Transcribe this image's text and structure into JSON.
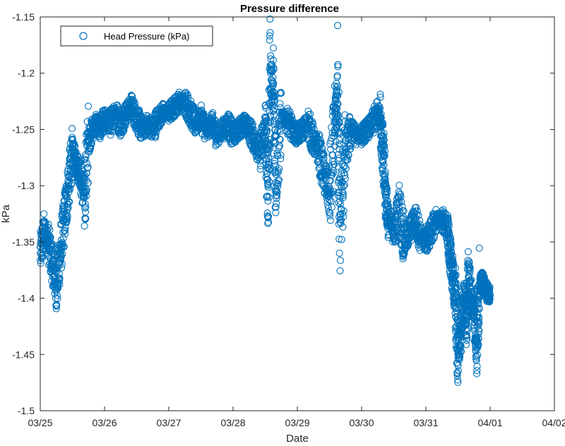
{
  "chart_data": {
    "type": "scatter",
    "title": "Pressure difference",
    "xlabel": "Date",
    "ylabel": "kPa",
    "x_ticks": [
      "03/25",
      "03/26",
      "03/27",
      "03/28",
      "03/29",
      "03/30",
      "03/31",
      "04/01",
      "04/02"
    ],
    "y_ticks": [
      "-1.15",
      "-1.2",
      "-1.25",
      "-1.3",
      "-1.35",
      "-1.4",
      "-1.45",
      "-1.5"
    ],
    "xlim": [
      "03/25",
      "04/02"
    ],
    "ylim": [
      -1.5,
      -1.15
    ],
    "grid": false,
    "legend_position": "top-left",
    "colors": {
      "series": "#0072BD",
      "axes": "#262626"
    },
    "series": [
      {
        "name": "Head Pressure (kPa)",
        "marker": "open-circle",
        "points": [
          [
            "03/25 00:00",
            -1.36
          ],
          [
            "03/25 01:30",
            -1.34
          ],
          [
            "03/25 03:00",
            -1.35
          ],
          [
            "03/25 04:30",
            -1.37
          ],
          [
            "03/25 06:00",
            -1.39
          ],
          [
            "03/25 07:30",
            -1.36
          ],
          [
            "03/25 09:00",
            -1.33
          ],
          [
            "03/25 10:30",
            -1.3
          ],
          [
            "03/25 12:00",
            -1.27
          ],
          [
            "03/25 13:30",
            -1.28
          ],
          [
            "03/25 15:00",
            -1.29
          ],
          [
            "03/25 16:30",
            -1.31
          ],
          [
            "03/25 18:00",
            -1.26
          ],
          [
            "03/25 19:30",
            -1.25
          ],
          [
            "03/25 21:00",
            -1.245
          ],
          [
            "03/25 22:30",
            -1.25
          ],
          [
            "03/26 00:00",
            -1.24
          ],
          [
            "03/26 02:00",
            -1.245
          ],
          [
            "03/26 04:00",
            -1.235
          ],
          [
            "03/26 06:00",
            -1.245
          ],
          [
            "03/26 08:00",
            -1.235
          ],
          [
            "03/26 10:00",
            -1.23
          ],
          [
            "03/26 12:00",
            -1.24
          ],
          [
            "03/26 14:00",
            -1.25
          ],
          [
            "03/26 16:00",
            -1.245
          ],
          [
            "03/26 18:00",
            -1.25
          ],
          [
            "03/26 20:00",
            -1.24
          ],
          [
            "03/26 22:00",
            -1.235
          ],
          [
            "03/27 00:00",
            -1.235
          ],
          [
            "03/27 02:00",
            -1.23
          ],
          [
            "03/27 04:00",
            -1.225
          ],
          [
            "03/27 06:00",
            -1.225
          ],
          [
            "03/27 08:00",
            -1.235
          ],
          [
            "03/27 10:00",
            -1.245
          ],
          [
            "03/27 12:00",
            -1.24
          ],
          [
            "03/27 14:00",
            -1.25
          ],
          [
            "03/27 16:00",
            -1.245
          ],
          [
            "03/27 18:00",
            -1.255
          ],
          [
            "03/27 20:00",
            -1.25
          ],
          [
            "03/27 22:00",
            -1.245
          ],
          [
            "03/28 00:00",
            -1.255
          ],
          [
            "03/28 02:00",
            -1.25
          ],
          [
            "03/28 04:00",
            -1.245
          ],
          [
            "03/28 06:00",
            -1.25
          ],
          [
            "03/28 08:00",
            -1.26
          ],
          [
            "03/28 10:00",
            -1.27
          ],
          [
            "03/28 12:00",
            -1.25
          ],
          [
            "03/28 13:00",
            -1.3
          ],
          [
            "03/28 14:00",
            -1.2
          ],
          [
            "03/28 15:00",
            -1.22
          ],
          [
            "03/28 16:00",
            -1.29
          ],
          [
            "03/28 18:00",
            -1.24
          ],
          [
            "03/28 20:00",
            -1.24
          ],
          [
            "03/28 22:00",
            -1.25
          ],
          [
            "03/29 00:00",
            -1.255
          ],
          [
            "03/29 02:00",
            -1.25
          ],
          [
            "03/29 04:00",
            -1.245
          ],
          [
            "03/29 06:00",
            -1.26
          ],
          [
            "03/29 08:00",
            -1.27
          ],
          [
            "03/29 10:00",
            -1.29
          ],
          [
            "03/29 12:00",
            -1.31
          ],
          [
            "03/29 14:00",
            -1.25
          ],
          [
            "03/29 15:00",
            -1.22
          ],
          [
            "03/29 16:00",
            -1.33
          ],
          [
            "03/29 18:00",
            -1.27
          ],
          [
            "03/29 20:00",
            -1.25
          ],
          [
            "03/29 22:00",
            -1.255
          ],
          [
            "03/30 00:00",
            -1.255
          ],
          [
            "03/30 02:00",
            -1.25
          ],
          [
            "03/30 04:00",
            -1.245
          ],
          [
            "03/30 06:00",
            -1.235
          ],
          [
            "03/30 07:00",
            -1.24
          ],
          [
            "03/30 08:00",
            -1.27
          ],
          [
            "03/30 09:00",
            -1.31
          ],
          [
            "03/30 10:00",
            -1.33
          ],
          [
            "03/30 12:00",
            -1.34
          ],
          [
            "03/30 14:00",
            -1.32
          ],
          [
            "03/30 16:00",
            -1.35
          ],
          [
            "03/30 18:00",
            -1.34
          ],
          [
            "03/30 20:00",
            -1.33
          ],
          [
            "03/30 22:00",
            -1.345
          ],
          [
            "03/31 00:00",
            -1.35
          ],
          [
            "03/31 02:00",
            -1.34
          ],
          [
            "03/31 04:00",
            -1.33
          ],
          [
            "03/31 06:00",
            -1.33
          ],
          [
            "03/31 08:00",
            -1.34
          ],
          [
            "03/31 09:00",
            -1.36
          ],
          [
            "03/31 10:00",
            -1.38
          ],
          [
            "03/31 11:00",
            -1.4
          ],
          [
            "03/31 12:00",
            -1.45
          ],
          [
            "03/31 13:00",
            -1.43
          ],
          [
            "03/31 14:00",
            -1.4
          ],
          [
            "03/31 15:00",
            -1.42
          ],
          [
            "03/31 16:00",
            -1.38
          ],
          [
            "03/31 17:00",
            -1.4
          ],
          [
            "03/31 18:00",
            -1.41
          ],
          [
            "03/31 19:00",
            -1.44
          ],
          [
            "03/31 20:00",
            -1.39
          ],
          [
            "03/31 21:00",
            -1.385
          ],
          [
            "03/31 22:00",
            -1.39
          ],
          [
            "03/31 23:00",
            -1.395
          ],
          [
            "04/01 00:00",
            -1.397
          ]
        ]
      }
    ]
  }
}
